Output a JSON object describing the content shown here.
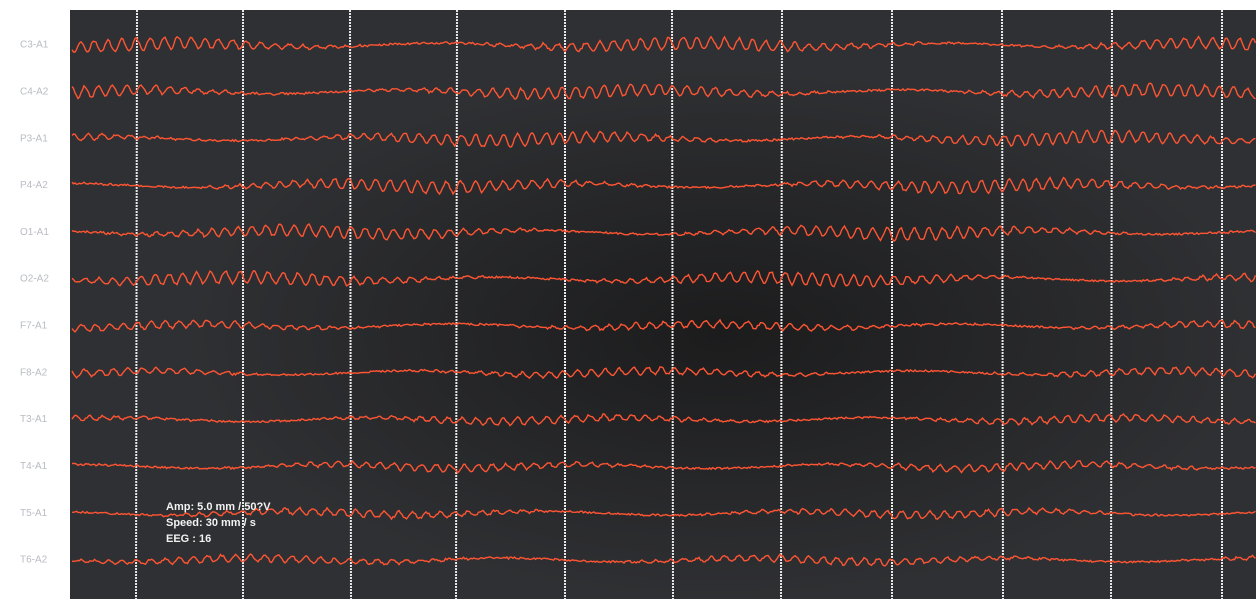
{
  "screen": {
    "channels": [
      "C3-A1",
      "C4-A2",
      "P3-A1",
      "P4-A2",
      "O1-A1",
      "O2-A2",
      "F7-A1",
      "F8-A2",
      "T3-A1",
      "T4-A1",
      "T5-A1",
      "T6-A2"
    ],
    "info": [
      "Amp: 5.0 mm / 50?V",
      "Speed: 30 mm / s",
      "EEG : 16"
    ]
  }
}
